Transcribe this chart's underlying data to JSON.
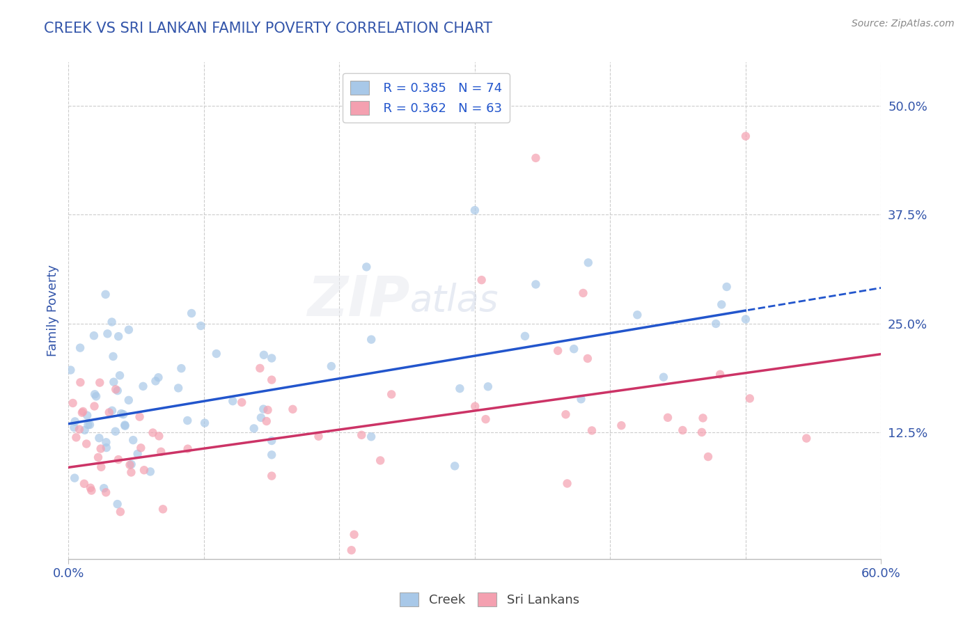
{
  "title": "CREEK VS SRI LANKAN FAMILY POVERTY CORRELATION CHART",
  "source_text": "Source: ZipAtlas.com",
  "ylabel": "Family Poverty",
  "xlim": [
    0.0,
    0.6
  ],
  "ylim": [
    -0.02,
    0.55
  ],
  "ytick_right_vals": [
    0.125,
    0.25,
    0.375,
    0.5
  ],
  "ytick_right_labels": [
    "12.5%",
    "25.0%",
    "37.5%",
    "50.0%"
  ],
  "creek_color": "#a8c8e8",
  "srilankans_color": "#f4a0b0",
  "creek_line_color": "#2255cc",
  "srilankans_line_color": "#cc3366",
  "title_color": "#3355aa",
  "axis_label_color": "#3355aa",
  "tick_label_color": "#3355aa",
  "legend_r1": "R = 0.385",
  "legend_n1": "N = 74",
  "legend_r2": "R = 0.362",
  "legend_n2": "N = 63",
  "creek_r": 0.385,
  "creek_n": 74,
  "srilankans_r": 0.362,
  "srilankans_n": 63,
  "background_color": "#ffffff",
  "grid_color": "#cccccc",
  "creek_line_start_y": 0.135,
  "creek_line_end_x": 0.5,
  "creek_line_end_y": 0.265,
  "sri_line_start_y": 0.085,
  "sri_line_end_x": 0.6,
  "sri_line_end_y": 0.215
}
